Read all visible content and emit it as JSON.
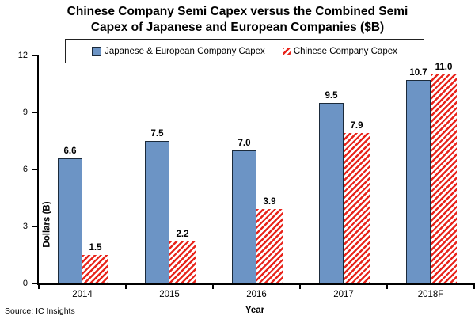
{
  "title": "Chinese Company Semi Capex versus the Combined Semi Capex of Japanese and European Companies ($B)",
  "source": "Source: IC Insights",
  "chart_data": {
    "type": "bar",
    "categories": [
      "2014",
      "2015",
      "2016",
      "2017",
      "2018F"
    ],
    "series": [
      {
        "name": "Japanese & European Company Capex",
        "values": [
          6.6,
          7.5,
          7.0,
          9.5,
          10.7
        ],
        "color": "#6C94C5",
        "border_color": "#1B2A3A",
        "pattern": "solid"
      },
      {
        "name": "Chinese Company Capex",
        "values": [
          1.5,
          2.2,
          3.9,
          7.9,
          11.0
        ],
        "color": "#E8251C",
        "border_color": "none",
        "pattern": "diagonal-stripes"
      }
    ],
    "xlabel": "Year",
    "ylabel": "Dollars (B)",
    "yticks": [
      0,
      3,
      6,
      9,
      12
    ],
    "ylim": [
      0,
      12
    ],
    "grid": false,
    "legend_position": "top-center",
    "value_labels": true,
    "value_label_format": "one-decimal"
  }
}
